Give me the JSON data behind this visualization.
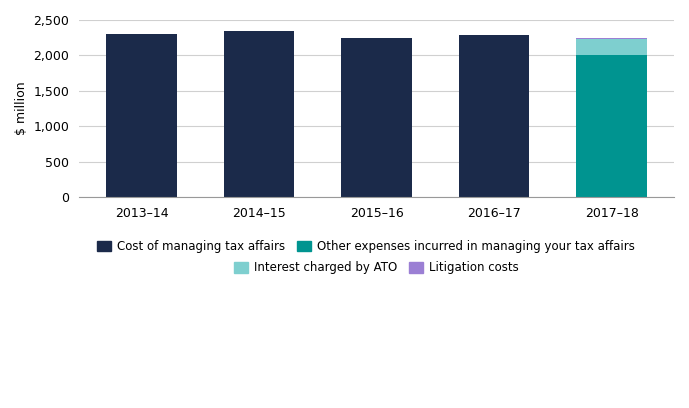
{
  "years": [
    "2013–14",
    "2014–15",
    "2015–16",
    "2016–17",
    "2017–18"
  ],
  "cost_managing": [
    2300,
    2350,
    2250,
    2285,
    0
  ],
  "other_expenses": [
    0,
    0,
    0,
    0,
    2000
  ],
  "interest_ato": [
    0,
    0,
    0,
    0,
    230
  ],
  "litigation": [
    0,
    0,
    0,
    0,
    15
  ],
  "color_cost_managing": "#1b2a4a",
  "color_other_expenses": "#009490",
  "color_interest_ato": "#7ecfcf",
  "color_litigation": "#9b7fd4",
  "ylabel": "$ million",
  "ylim": [
    0,
    2500
  ],
  "yticks": [
    0,
    500,
    1000,
    1500,
    2000,
    2500
  ],
  "legend_cost": "Cost of managing tax affairs",
  "legend_other": "Other expenses incurred in managing your tax affairs",
  "legend_interest": "Interest charged by ATO",
  "legend_litigation": "Litigation costs",
  "bar_width": 0.6,
  "bg_color": "#ffffff",
  "grid_color": "#d0d0d0"
}
